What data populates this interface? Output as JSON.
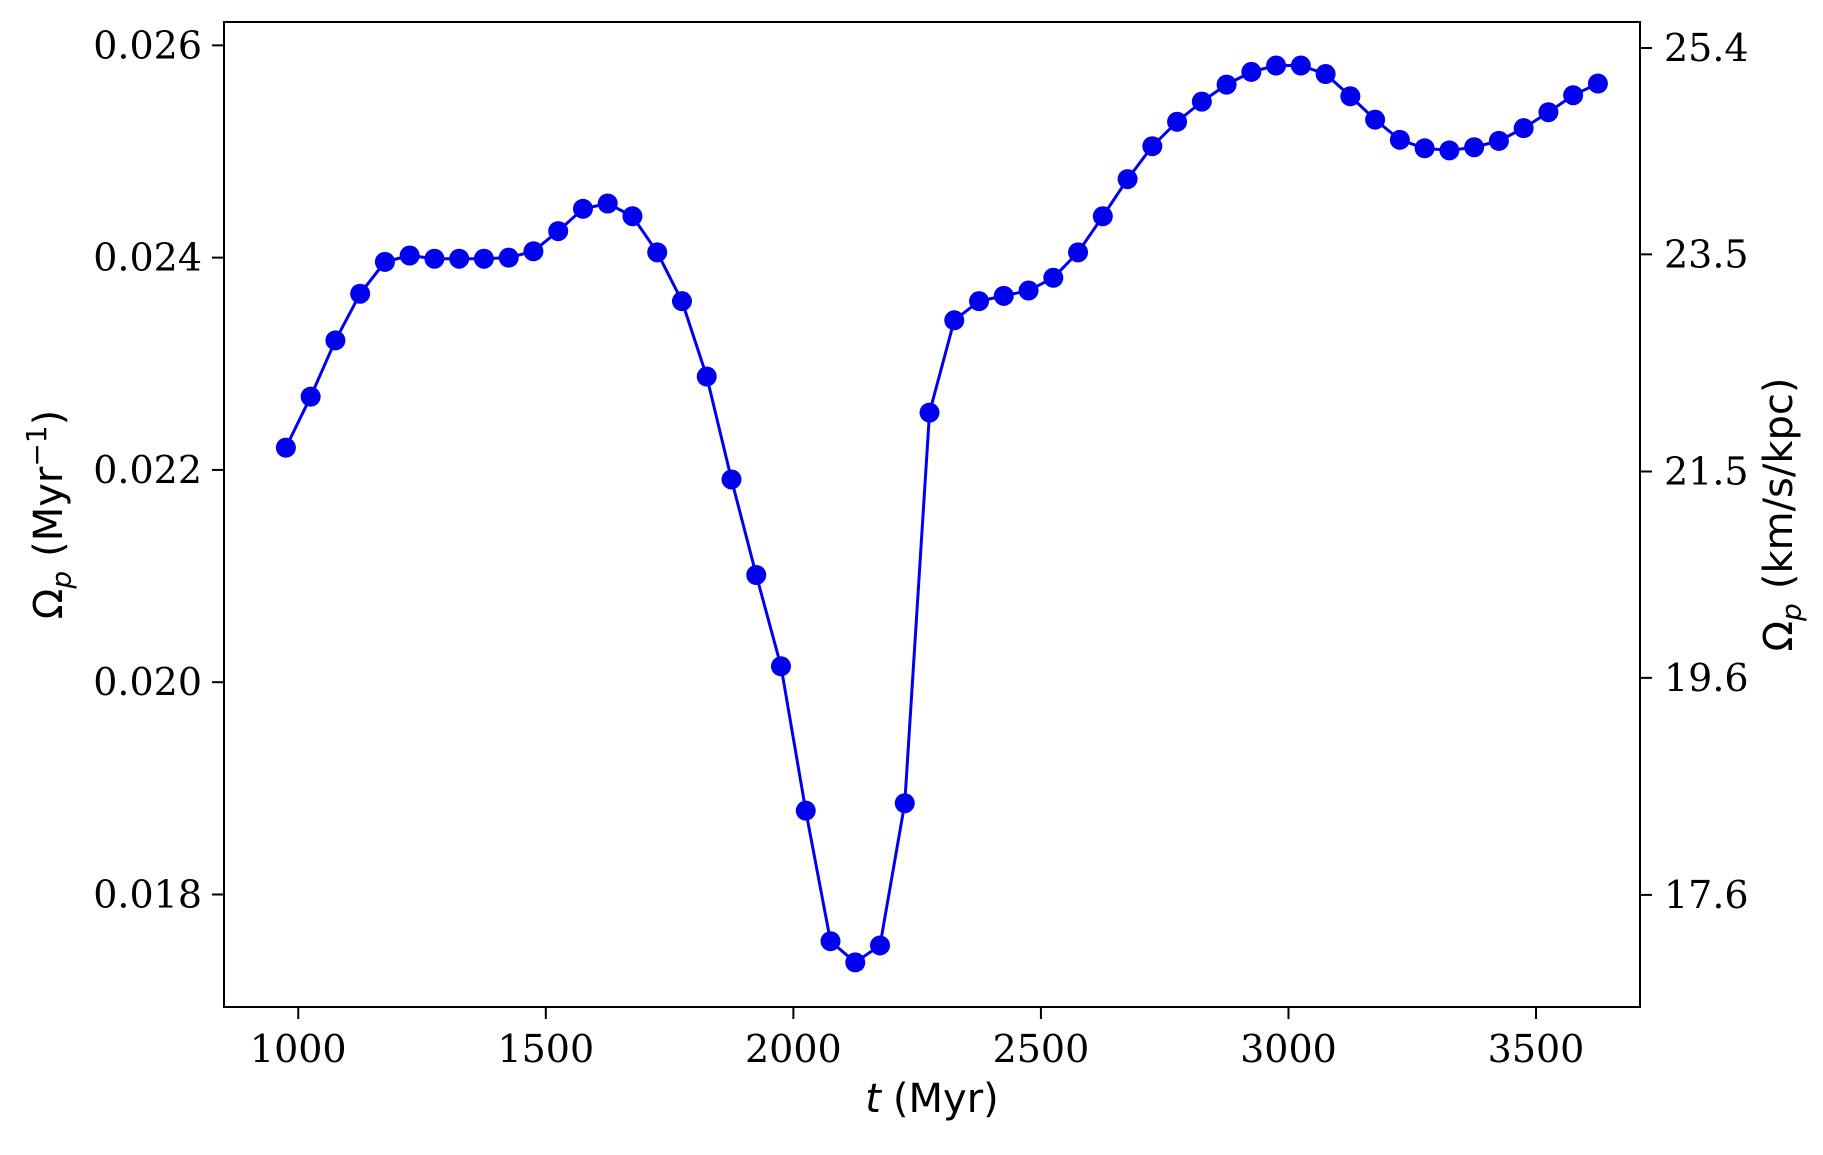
{
  "chart_data": {
    "type": "line",
    "title": "",
    "xlabel": {
      "var": "t",
      "unit": "(Myr)"
    },
    "ylabel": {
      "symbol": "Ω",
      "sub": "p",
      "unit_open": "(Myr",
      "unit_sup": "−1",
      "unit_close": ")"
    },
    "ylabel_right": {
      "symbol": "Ω",
      "sub": "p",
      "unit": "(km/s/kpc)"
    },
    "xlim": [
      850,
      3710
    ],
    "ylim": [
      0.01694,
      0.02622
    ],
    "xticks": [
      1000,
      1500,
      2000,
      2500,
      3000,
      3500
    ],
    "xtick_labels": [
      "1000",
      "1500",
      "2000",
      "2500",
      "3000",
      "3500"
    ],
    "yticks": [
      0.018,
      0.02,
      0.022,
      0.024,
      0.026
    ],
    "ytick_labels": [
      "0.018",
      "0.020",
      "0.022",
      "0.024",
      "0.026"
    ],
    "yticks_right": [
      0.017996,
      0.020041,
      0.021985,
      0.024031,
      0.025975
    ],
    "ytick_labels_right": [
      "17.6",
      "19.6",
      "21.5",
      "23.5",
      "25.4"
    ],
    "grid": false,
    "series": [
      {
        "color": "#0000ee",
        "marker": "circle",
        "x": [
          975,
          1025,
          1075,
          1125,
          1175,
          1225,
          1275,
          1325,
          1375,
          1425,
          1475,
          1525,
          1575,
          1625,
          1675,
          1725,
          1775,
          1825,
          1875,
          1925,
          1975,
          2025,
          2075,
          2125,
          2175,
          2225,
          2275,
          2325,
          2375,
          2425,
          2475,
          2525,
          2575,
          2625,
          2675,
          2725,
          2775,
          2825,
          2875,
          2925,
          2975,
          3025,
          3075,
          3125,
          3175,
          3225,
          3275,
          3325,
          3375,
          3425,
          3475,
          3525,
          3575,
          3625
        ],
        "y": [
          0.02221,
          0.02269,
          0.02322,
          0.02366,
          0.02396,
          0.02402,
          0.02399,
          0.02399,
          0.02399,
          0.024,
          0.02406,
          0.02425,
          0.02446,
          0.02451,
          0.02439,
          0.02405,
          0.02359,
          0.02288,
          0.02191,
          0.02101,
          0.02015,
          0.01879,
          0.01756,
          0.01736,
          0.01752,
          0.01886,
          0.02254,
          0.02341,
          0.02359,
          0.02364,
          0.02369,
          0.02381,
          0.02405,
          0.02439,
          0.02474,
          0.02505,
          0.02528,
          0.02547,
          0.02563,
          0.02575,
          0.02581,
          0.02581,
          0.02573,
          0.02552,
          0.0253,
          0.02511,
          0.02503,
          0.02501,
          0.02504,
          0.0251,
          0.02522,
          0.02537,
          0.02553,
          0.02564
        ]
      }
    ]
  }
}
